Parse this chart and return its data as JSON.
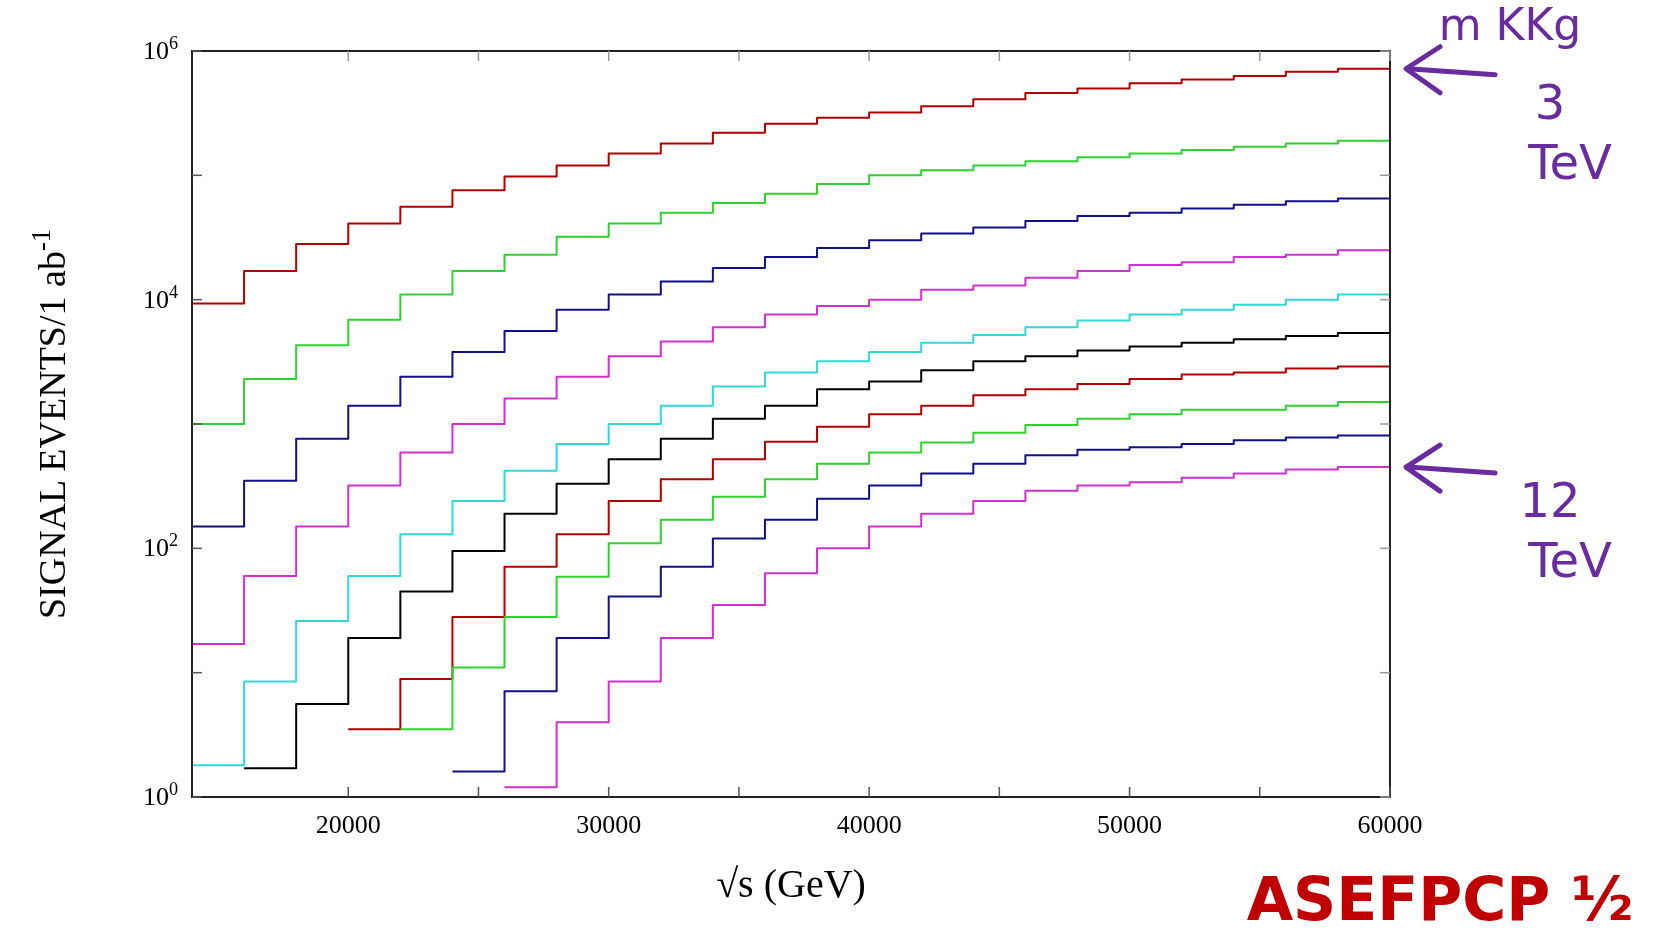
{
  "chart_data": {
    "type": "step",
    "xlabel": "√s (GeV)",
    "ylabel": "SIGNAL EVENTS/1 ab$^{-1}$",
    "log": "y",
    "grid": false,
    "xlim": [
      14000,
      60000
    ],
    "ylim": [
      1,
      1000000
    ],
    "xticks": [
      20000,
      {
        "value": 25000,
        "label": null
      },
      30000,
      {
        "value": 35000,
        "label": null
      },
      40000,
      {
        "value": 45000,
        "label": null
      },
      50000,
      {
        "value": 55000,
        "label": null
      },
      60000
    ],
    "yticks": [
      {
        "value": 1,
        "label": "10$^{0}$"
      },
      {
        "value": 10,
        "label": null
      },
      {
        "value": 100,
        "label": "10$^{2}$"
      },
      {
        "value": 1000,
        "label": null
      },
      {
        "value": 10000,
        "label": "10$^{4}$"
      },
      {
        "value": 100000,
        "label": null
      },
      {
        "value": 1000000,
        "label": "10$^{6}$"
      }
    ],
    "x": [
      14000,
      16000,
      18000,
      20000,
      22000,
      24000,
      26000,
      28000,
      30000,
      32000,
      34000,
      36000,
      38000,
      40000,
      42000,
      44000,
      46000,
      48000,
      50000,
      52000,
      54000,
      56000,
      58000,
      60000
    ],
    "series": [
      {
        "color": "#b00000",
        "values": [
          9300,
          17000,
          28000,
          41000,
          56000,
          76000,
          98000,
          120000,
          150000,
          180000,
          220000,
          260000,
          290000,
          320000,
          360000,
          410000,
          460000,
          500000,
          550000,
          590000,
          630000,
          680000,
          720000,
          720000
        ]
      },
      {
        "color": "#30d030",
        "values": [
          1000,
          2300,
          4300,
          6900,
          11000,
          17000,
          23000,
          32000,
          41000,
          50000,
          60000,
          71000,
          85000,
          100000,
          110000,
          120000,
          130000,
          140000,
          150000,
          160000,
          170000,
          180000,
          190000,
          190000
        ]
      },
      {
        "color": "#10108a",
        "values": [
          150,
          350,
          760,
          1400,
          2400,
          3800,
          5600,
          8300,
          11000,
          14000,
          18000,
          22000,
          26000,
          30000,
          34000,
          38000,
          43000,
          47000,
          50000,
          54000,
          58000,
          62000,
          65000,
          65000
        ]
      },
      {
        "color": "#d030d0",
        "values": [
          17,
          60,
          150,
          320,
          590,
          1000,
          1600,
          2400,
          3500,
          4600,
          6000,
          7600,
          8900,
          10000,
          12000,
          13000,
          15000,
          17000,
          19000,
          20000,
          22000,
          23000,
          25000,
          25000
        ]
      },
      {
        "color": "#30d8d8",
        "values": [
          1.8,
          8.5,
          26,
          60,
          130,
          240,
          420,
          690,
          1000,
          1400,
          2000,
          2600,
          3200,
          3800,
          4500,
          5200,
          6000,
          6800,
          7600,
          8300,
          9100,
          10000,
          11000,
          11000
        ]
      },
      {
        "color": "#000000",
        "values": [
          null,
          1.7,
          5.6,
          19,
          45,
          95,
          190,
          330,
          520,
          760,
          1100,
          1400,
          1900,
          2200,
          2700,
          3200,
          3500,
          3900,
          4200,
          4500,
          4800,
          5100,
          5400,
          5400
        ]
      },
      {
        "color": "#b00000",
        "values": [
          null,
          null,
          null,
          3.5,
          8.9,
          28,
          71,
          130,
          240,
          360,
          520,
          720,
          950,
          1200,
          1400,
          1700,
          1900,
          2100,
          2300,
          2500,
          2600,
          2800,
          2900,
          2900
        ]
      },
      {
        "color": "#30d030",
        "values": [
          null,
          null,
          null,
          null,
          3.5,
          11,
          28,
          59,
          110,
          170,
          260,
          360,
          480,
          590,
          710,
          850,
          980,
          1100,
          1200,
          1300,
          1300,
          1400,
          1500,
          1500
        ]
      },
      {
        "color": "#10108a",
        "values": [
          null,
          null,
          null,
          null,
          null,
          1.6,
          7.1,
          19,
          41,
          71,
          120,
          170,
          250,
          320,
          400,
          480,
          560,
          620,
          650,
          690,
          740,
          780,
          810,
          810
        ]
      },
      {
        "color": "#d030d0",
        "values": [
          null,
          null,
          null,
          null,
          null,
          null,
          1.2,
          4,
          8.5,
          19,
          35,
          63,
          100,
          150,
          190,
          240,
          290,
          320,
          340,
          370,
          400,
          430,
          450,
          450
        ]
      }
    ],
    "annotations": [
      "m KKg",
      {
        "text": "3 TeV",
        "x": 60000,
        "y": 720000
      },
      {
        "text": "12 TeV",
        "x": 60000,
        "y": 450
      },
      "ASEFPCP ½"
    ]
  }
}
